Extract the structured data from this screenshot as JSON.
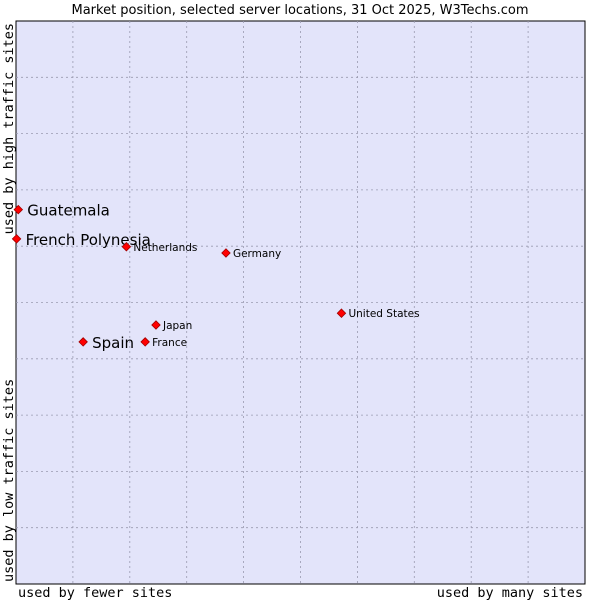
{
  "chart_data": {
    "type": "scatter",
    "title": "Market position, selected server locations, 31 Oct 2025, W3Techs.com",
    "xlabel_left": "used by fewer sites",
    "xlabel_right": "used by many sites",
    "ylabel_bottom": "used by low traffic sites",
    "ylabel_top": "used by high traffic sites",
    "xlim": [
      0,
      100
    ],
    "ylim": [
      0,
      100
    ],
    "grid": true,
    "point_color": "#ff0000",
    "plot_background": "#e3e4fa",
    "points": [
      {
        "label": "Guatemala",
        "x": 0.4,
        "y": 66.5,
        "highlight": true
      },
      {
        "label": "French Polynesia",
        "x": 0.1,
        "y": 61.3,
        "highlight": true
      },
      {
        "label": "Netherlands",
        "x": 19.4,
        "y": 59.9,
        "highlight": false
      },
      {
        "label": "Germany",
        "x": 36.9,
        "y": 58.8,
        "highlight": false
      },
      {
        "label": "United States",
        "x": 57.2,
        "y": 48.1,
        "highlight": false
      },
      {
        "label": "Japan",
        "x": 24.6,
        "y": 46.0,
        "highlight": false
      },
      {
        "label": "Spain",
        "x": 11.8,
        "y": 43.0,
        "highlight": true
      },
      {
        "label": "France",
        "x": 22.7,
        "y": 43.0,
        "highlight": false
      }
    ]
  }
}
